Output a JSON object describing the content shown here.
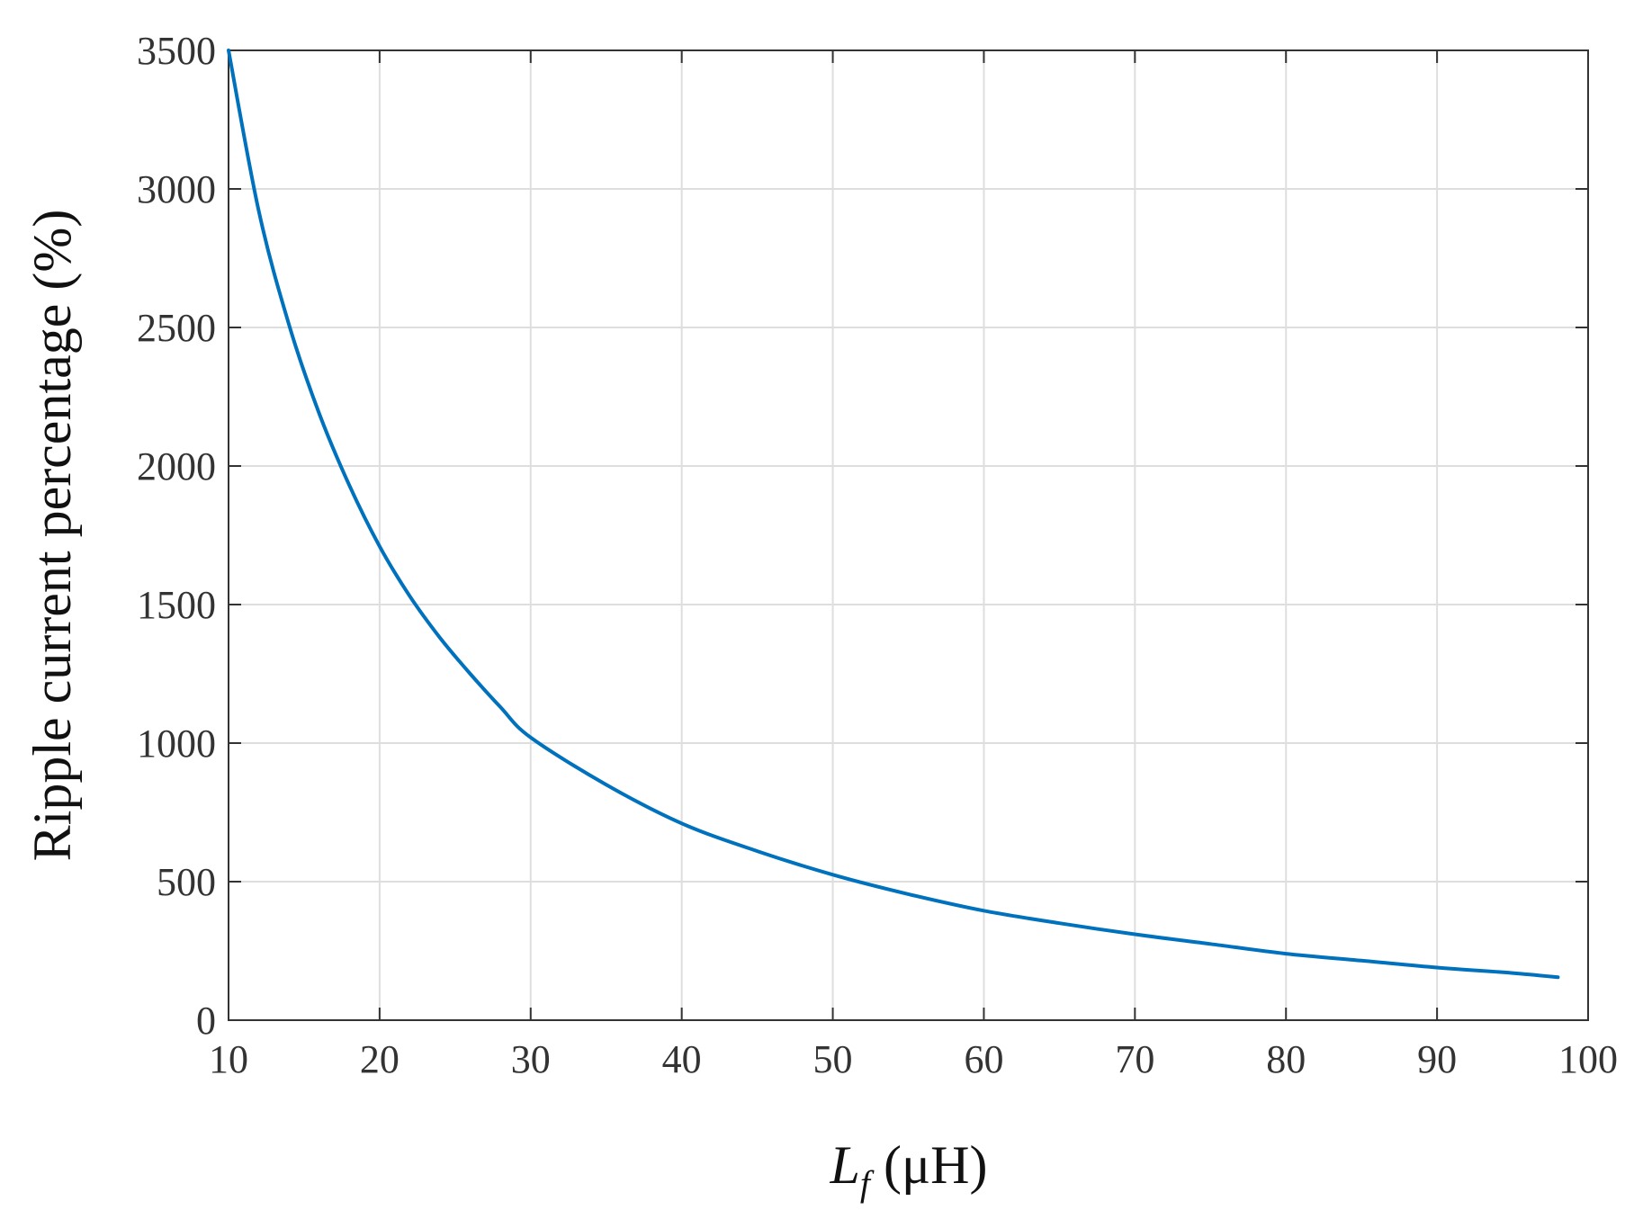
{
  "chart_data": {
    "type": "line",
    "xlabel": {
      "symbol": "L",
      "subscript": "f",
      "unit": " (μH)"
    },
    "ylabel": "Ripple current percentage (%)",
    "xlim": [
      10,
      100
    ],
    "ylim": [
      0,
      3500
    ],
    "xticks": [
      10,
      20,
      30,
      40,
      50,
      60,
      70,
      80,
      90,
      100
    ],
    "yticks": [
      0,
      500,
      1000,
      1500,
      2000,
      2500,
      3000,
      3500
    ],
    "grid": true,
    "colors": {
      "series": "#0072BD"
    },
    "series": [
      {
        "x": [
          10,
          12,
          14,
          16,
          18,
          20,
          22,
          24,
          26,
          28,
          30,
          35,
          40,
          45,
          50,
          55,
          60,
          65,
          70,
          75,
          80,
          85,
          90,
          95,
          98
        ],
        "y": [
          3500,
          2920,
          2510,
          2190,
          1930,
          1710,
          1530,
          1380,
          1250,
          1130,
          1020,
          850,
          710,
          610,
          525,
          455,
          395,
          350,
          310,
          275,
          240,
          215,
          190,
          170,
          155
        ]
      }
    ]
  }
}
